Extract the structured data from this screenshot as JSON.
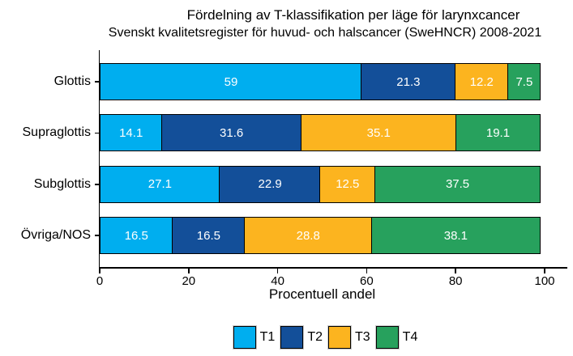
{
  "chart_data": {
    "type": "bar",
    "orientation": "horizontal",
    "stacked": true,
    "title": "Fördelning av T-klassifikation per läge för larynxcancer",
    "subtitle": "Svenskt kvalitetsregister för huvud- och halscancer (SweHNCR) 2008-2021",
    "xlabel": "Procentuell andel",
    "categories": [
      "Glottis",
      "Supraglottis",
      "Subglottis",
      "Övriga/NOS"
    ],
    "series": [
      {
        "name": "T1",
        "color": "#00AEEF",
        "values": [
          59,
          14.1,
          27.1,
          16.5
        ]
      },
      {
        "name": "T2",
        "color": "#134F99",
        "values": [
          21.3,
          31.6,
          22.9,
          16.5
        ]
      },
      {
        "name": "T3",
        "color": "#FCB41F",
        "values": [
          12.2,
          35.1,
          12.5,
          28.8
        ]
      },
      {
        "name": "T4",
        "color": "#27A15D",
        "values": [
          7.5,
          19.1,
          37.5,
          38.1
        ]
      }
    ],
    "xlim": [
      0,
      100
    ],
    "x_ticks": [
      0,
      20,
      40,
      60,
      80,
      100
    ],
    "grid": false,
    "legend_position": "bottom",
    "value_label_color": "#ffffff",
    "axis_color": "#000000",
    "background_color": "#ffffff"
  }
}
